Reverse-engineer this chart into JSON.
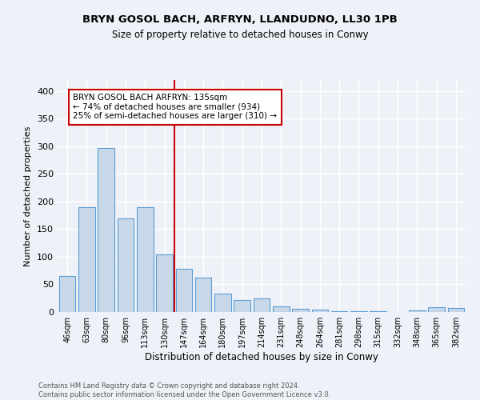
{
  "title1": "BRYN GOSOL BACH, ARFRYN, LLANDUDNO, LL30 1PB",
  "title2": "Size of property relative to detached houses in Conwy",
  "xlabel": "Distribution of detached houses by size in Conwy",
  "ylabel": "Number of detached properties",
  "categories": [
    "46sqm",
    "63sqm",
    "80sqm",
    "96sqm",
    "113sqm",
    "130sqm",
    "147sqm",
    "164sqm",
    "180sqm",
    "197sqm",
    "214sqm",
    "231sqm",
    "248sqm",
    "264sqm",
    "281sqm",
    "298sqm",
    "315sqm",
    "332sqm",
    "348sqm",
    "365sqm",
    "382sqm"
  ],
  "values": [
    65,
    190,
    297,
    170,
    190,
    104,
    78,
    62,
    33,
    22,
    25,
    10,
    6,
    5,
    2,
    2,
    1,
    0,
    3,
    8,
    7
  ],
  "bar_color": "#c8d8e8",
  "bar_edge_color": "#5b9bd5",
  "vline_x": 5.5,
  "vline_color": "#cc0000",
  "annotation_title": "BRYN GOSOL BACH ARFRYN: 135sqm",
  "annotation_line1": "← 74% of detached houses are smaller (934)",
  "annotation_line2": "25% of semi-detached houses are larger (310) →",
  "annotation_box_color": "#cc0000",
  "footnote1": "Contains HM Land Registry data © Crown copyright and database right 2024.",
  "footnote2": "Contains public sector information licensed under the Open Government Licence v3.0.",
  "ylim": [
    0,
    420
  ],
  "yticks": [
    0,
    50,
    100,
    150,
    200,
    250,
    300,
    350,
    400
  ],
  "bg_color": "#eef2f8",
  "grid_color": "#ffffff"
}
